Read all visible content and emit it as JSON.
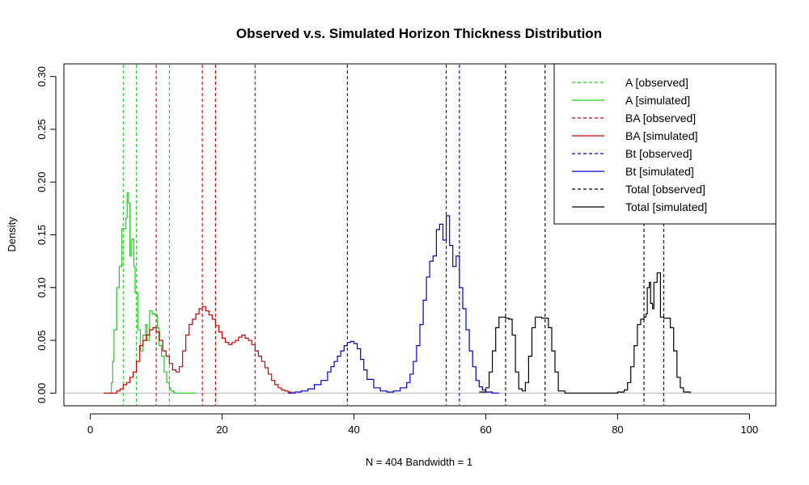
{
  "chart_data": {
    "type": "line",
    "title": "Observed v.s. Simulated Horizon Thickness Distribution",
    "xlabel": "N = 404   Bandwidth = 1",
    "ylabel": "Density",
    "xlim": [
      -4,
      104
    ],
    "ylim": [
      -0.012,
      0.312
    ],
    "x_ticks": [
      0,
      20,
      40,
      60,
      80,
      100
    ],
    "y_ticks": [
      0.0,
      0.05,
      0.1,
      0.15,
      0.2,
      0.25,
      0.3
    ],
    "x_tick_labels": [
      "0",
      "20",
      "40",
      "60",
      "80",
      "100"
    ],
    "y_tick_labels": [
      "0.00",
      "0.05",
      "0.10",
      "0.15",
      "0.20",
      "0.25",
      "0.30"
    ],
    "legend_position": "top-right",
    "colors": {
      "A": "#22cc22",
      "BA": "#cc0000",
      "Bt": "#0000cc",
      "Total": "#000000",
      "baseline": "#bebebe"
    },
    "legend": [
      {
        "label": "A [observed]",
        "color": "#22cc22",
        "dashed": true
      },
      {
        "label": "A [simulated]",
        "color": "#22cc22",
        "dashed": false
      },
      {
        "label": "BA [observed]",
        "color": "#cc0000",
        "dashed": true
      },
      {
        "label": "BA [simulated]",
        "color": "#cc0000",
        "dashed": false
      },
      {
        "label": "Bt [observed]",
        "color": "#0000cc",
        "dashed": true
      },
      {
        "label": "Bt [simulated]",
        "color": "#0000cc",
        "dashed": false
      },
      {
        "label": "Total [observed]",
        "color": "#000000",
        "dashed": true
      },
      {
        "label": "Total [simulated]",
        "color": "#000000",
        "dashed": false
      }
    ],
    "observed": [
      {
        "horizon": "A",
        "color": "#22cc22",
        "x": [
          5,
          7,
          12
        ]
      },
      {
        "horizon": "BA",
        "color": "#cc0000",
        "x": [
          10,
          17,
          19,
          25
        ]
      },
      {
        "horizon": "Bt",
        "color": "#0000cc",
        "x": [
          39,
          54,
          56
        ]
      },
      {
        "horizon": "Total",
        "color": "#000000",
        "x": [
          63,
          69,
          84,
          87
        ]
      }
    ],
    "series": [
      {
        "horizon": "A",
        "color": "#22cc22",
        "x": [
          2.5,
          3.0,
          3.2,
          3.4,
          3.6,
          3.8,
          4.0,
          4.2,
          4.4,
          4.6,
          4.8,
          5.0,
          5.2,
          5.4,
          5.6,
          5.8,
          6.0,
          6.2,
          6.4,
          6.6,
          6.8,
          7.0,
          7.2,
          7.4,
          7.6,
          7.8,
          8.0,
          8.2,
          8.4,
          8.6,
          8.8,
          9.0,
          9.2,
          9.4,
          9.6,
          9.8,
          10.0,
          10.2,
          10.4,
          10.6,
          10.8,
          11.0,
          11.2,
          11.4,
          11.6,
          11.8,
          12.0,
          12.2,
          12.4,
          12.6,
          12.8,
          13.0,
          13.2,
          13.4,
          13.6,
          13.8,
          14.0,
          14.2,
          14.4,
          14.6,
          14.8,
          15.0,
          15.2,
          15.4,
          15.6,
          16.0
        ],
        "y": [
          0,
          0,
          0.01,
          0.03,
          0.06,
          0.06,
          0.1,
          0.1,
          0.12,
          0.12,
          0.156,
          0.156,
          0.156,
          0.166,
          0.19,
          0.18,
          0.13,
          0.145,
          0.146,
          0.12,
          0.095,
          0.095,
          0.06,
          0.06,
          0.04,
          0.04,
          0.055,
          0.055,
          0.065,
          0.05,
          0.05,
          0.078,
          0.078,
          0.075,
          0.075,
          0.074,
          0.074,
          0.062,
          0.045,
          0.045,
          0.035,
          0.035,
          0.02,
          0.02,
          0.01,
          0.01,
          0.005,
          0.002,
          0.002,
          0.001,
          0,
          0,
          0,
          0,
          0,
          0,
          0,
          0,
          0,
          0,
          0,
          0,
          0,
          0,
          0,
          0
        ]
      },
      {
        "horizon": "BA",
        "color": "#cc0000",
        "x": [
          2.0,
          3.0,
          4.0,
          4.5,
          5.0,
          5.5,
          6.0,
          6.5,
          7.0,
          7.5,
          8.0,
          8.5,
          9.0,
          9.5,
          10.0,
          10.5,
          11.0,
          11.5,
          12.0,
          12.5,
          13.0,
          13.5,
          14.0,
          14.5,
          15.0,
          15.5,
          16.0,
          16.5,
          17.0,
          17.5,
          18.0,
          18.5,
          19.0,
          19.5,
          20.0,
          20.5,
          21.0,
          21.5,
          22.0,
          22.5,
          23.0,
          23.5,
          24.0,
          24.5,
          25.0,
          25.5,
          26.0,
          26.5,
          27.0,
          27.5,
          28.0,
          28.5,
          29.0,
          29.5,
          30.0,
          30.5,
          31.0
        ],
        "y": [
          0,
          0,
          0.002,
          0.004,
          0.008,
          0.01,
          0.015,
          0.02,
          0.03,
          0.045,
          0.05,
          0.055,
          0.06,
          0.062,
          0.058,
          0.05,
          0.04,
          0.035,
          0.028,
          0.022,
          0.02,
          0.025,
          0.04,
          0.055,
          0.065,
          0.07,
          0.075,
          0.08,
          0.082,
          0.078,
          0.074,
          0.07,
          0.064,
          0.058,
          0.052,
          0.048,
          0.046,
          0.048,
          0.05,
          0.053,
          0.055,
          0.052,
          0.05,
          0.046,
          0.04,
          0.035,
          0.03,
          0.024,
          0.018,
          0.012,
          0.008,
          0.005,
          0.003,
          0.002,
          0.001,
          0,
          0
        ]
      },
      {
        "horizon": "Bt",
        "color": "#0000cc",
        "x": [
          30,
          31,
          32,
          33,
          34,
          35,
          36,
          36.5,
          37,
          37.5,
          38,
          38.5,
          39,
          39.5,
          40,
          40.5,
          41,
          41.5,
          42,
          43,
          44,
          45,
          46,
          47,
          48,
          48.5,
          49,
          49.5,
          50,
          50.5,
          51,
          51.5,
          52,
          52.5,
          53,
          53.5,
          54,
          54.5,
          55,
          55.5,
          56,
          56.5,
          57,
          57.5,
          58,
          58.5,
          59,
          59.5,
          60,
          61,
          62
        ],
        "y": [
          0,
          0.001,
          0.002,
          0.004,
          0.008,
          0.012,
          0.02,
          0.025,
          0.03,
          0.035,
          0.04,
          0.045,
          0.048,
          0.049,
          0.047,
          0.042,
          0.032,
          0.022,
          0.013,
          0.005,
          0.002,
          0.001,
          0.002,
          0.005,
          0.01,
          0.018,
          0.03,
          0.045,
          0.065,
          0.088,
          0.11,
          0.125,
          0.13,
          0.155,
          0.16,
          0.145,
          0.168,
          0.14,
          0.12,
          0.13,
          0.1,
          0.08,
          0.06,
          0.04,
          0.025,
          0.012,
          0.006,
          0.003,
          0.001,
          0,
          0
        ]
      },
      {
        "horizon": "Total",
        "color": "#000000",
        "x": [
          59,
          60,
          60.5,
          61,
          61.5,
          62,
          63,
          63.5,
          64,
          64.5,
          65,
          65.5,
          66,
          66.5,
          67,
          67.5,
          68,
          68.5,
          69,
          69.5,
          70,
          70.5,
          71,
          72,
          74,
          76,
          78,
          80,
          81,
          81.5,
          82,
          82.5,
          83,
          83.5,
          84,
          84.3,
          84.5,
          84.8,
          85,
          85.3,
          85.5,
          86,
          86.5,
          87,
          87.5,
          88,
          88.5,
          89,
          89.5,
          90,
          91
        ],
        "y": [
          0.001,
          0.005,
          0.02,
          0.04,
          0.062,
          0.072,
          0.071,
          0.07,
          0.055,
          0.02,
          0.004,
          0.002,
          0.01,
          0.035,
          0.062,
          0.072,
          0.072,
          0.071,
          0.071,
          0.062,
          0.04,
          0.02,
          0.002,
          0,
          0,
          0,
          0,
          0.001,
          0.003,
          0.01,
          0.025,
          0.045,
          0.065,
          0.07,
          0.072,
          0.075,
          0.1,
          0.105,
          0.085,
          0.08,
          0.105,
          0.114,
          0.072,
          0.071,
          0.071,
          0.062,
          0.04,
          0.015,
          0.005,
          0.001,
          0
        ]
      }
    ]
  }
}
